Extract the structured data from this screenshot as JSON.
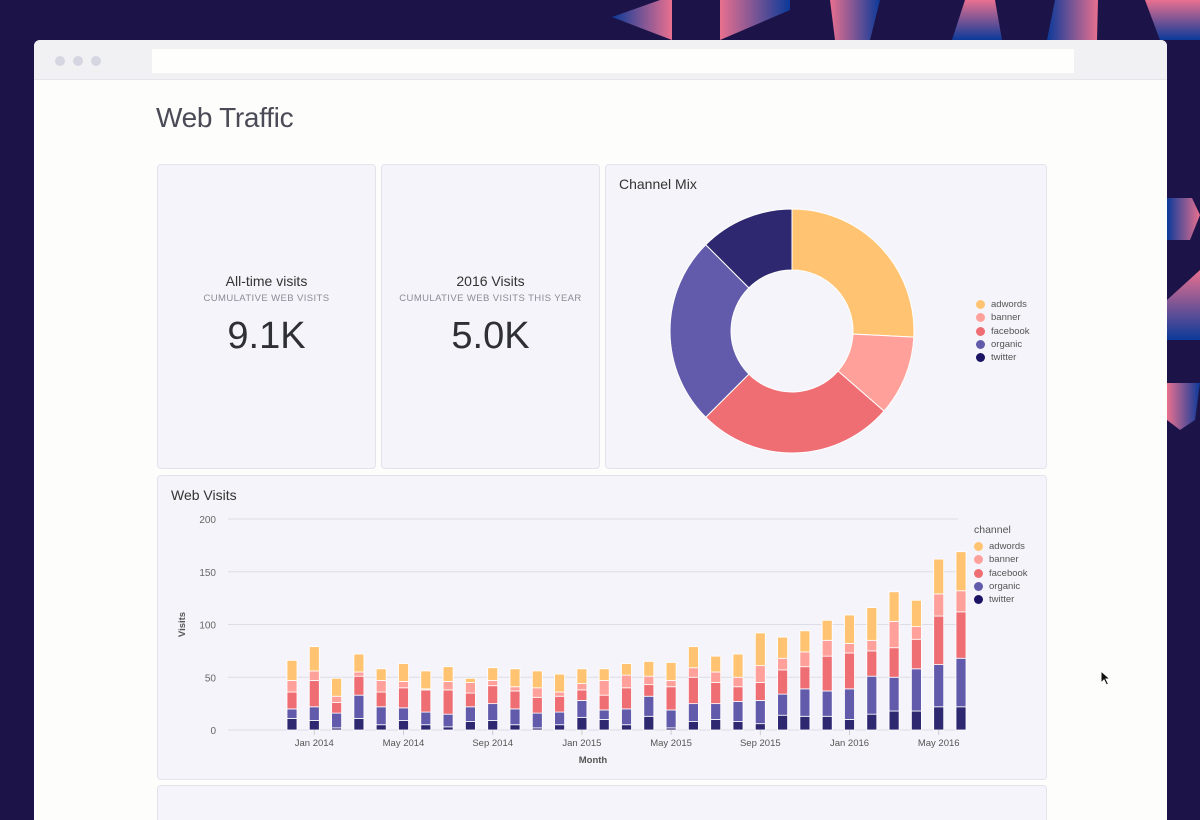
{
  "window": {
    "url": ""
  },
  "page": {
    "title": "Web Traffic"
  },
  "kpis": [
    {
      "title": "All-time visits",
      "subtitle": "CUMULATIVE WEB VISITS",
      "value": "9.1K"
    },
    {
      "title": "2016 Visits",
      "subtitle": "CUMULATIVE WEB VISITS THIS YEAR",
      "value": "5.0K"
    }
  ],
  "colors": {
    "adwords": "#FFC372",
    "banner": "#FFA19A",
    "facebook": "#EF6E74",
    "organic": "#625BAC",
    "twitter": "#2D2870"
  },
  "channel_mix": {
    "title": "Channel Mix",
    "legend": [
      "adwords",
      "banner",
      "facebook",
      "organic",
      "twitter"
    ]
  },
  "web_visits": {
    "title": "Web Visits",
    "legend_title": "channel",
    "legend": [
      "adwords",
      "banner",
      "facebook",
      "organic",
      "twitter"
    ]
  },
  "chart_data": [
    {
      "type": "pie",
      "title": "Channel Mix",
      "donut": true,
      "categories": [
        "adwords",
        "banner",
        "facebook",
        "organic",
        "twitter"
      ],
      "values": [
        25.8,
        10.6,
        26.1,
        25.0,
        12.5
      ],
      "unit": "percent (estimated)",
      "legend_position": "right"
    },
    {
      "type": "bar",
      "stacked": true,
      "title": "Web Visits",
      "xlabel": "Month",
      "ylabel": "Visits",
      "ylim": [
        0,
        200
      ],
      "yticks": [
        0,
        50,
        100,
        150,
        200
      ],
      "xtick_labels": [
        "Jan 2014",
        "May 2014",
        "Sep 2014",
        "Jan 2015",
        "May 2015",
        "Sep 2015",
        "Jan 2016",
        "May 2016"
      ],
      "grid": true,
      "legend_title": "channel",
      "legend_position": "right",
      "categories": [
        "Dec 2013",
        "Jan 2014",
        "Feb 2014",
        "Mar 2014",
        "Apr 2014",
        "May 2014",
        "Jun 2014",
        "Jul 2014",
        "Aug 2014",
        "Sep 2014",
        "Oct 2014",
        "Nov 2014",
        "Dec 2014",
        "Jan 2015",
        "Feb 2015",
        "Mar 2015",
        "Apr 2015",
        "May 2015",
        "Jun 2015",
        "Jul 2015",
        "Aug 2015",
        "Sep 2015",
        "Oct 2015",
        "Nov 2015",
        "Dec 2015",
        "Jan 2016",
        "Feb 2016",
        "Mar 2016",
        "Apr 2016",
        "May 2016",
        "Jun 2016"
      ],
      "series": [
        {
          "name": "twitter",
          "values": [
            11,
            9,
            2,
            11,
            5,
            9,
            5,
            3,
            8,
            9,
            5,
            2,
            5,
            12,
            10,
            5,
            13,
            2,
            8,
            10,
            8,
            6,
            14,
            13,
            13,
            10,
            15,
            18,
            18,
            22,
            22
          ]
        },
        {
          "name": "organic",
          "values": [
            9,
            13,
            14,
            22,
            17,
            12,
            12,
            12,
            14,
            16,
            15,
            14,
            12,
            16,
            9,
            15,
            19,
            17,
            17,
            15,
            19,
            22,
            20,
            26,
            24,
            29,
            36,
            32,
            40,
            40,
            46
          ]
        },
        {
          "name": "facebook",
          "values": [
            16,
            25,
            10,
            18,
            14,
            19,
            21,
            23,
            13,
            17,
            17,
            15,
            15,
            10,
            14,
            20,
            11,
            22,
            25,
            20,
            14,
            17,
            23,
            21,
            33,
            34,
            24,
            28,
            28,
            46,
            44
          ]
        },
        {
          "name": "banner",
          "values": [
            11,
            9,
            6,
            4,
            11,
            6,
            1,
            8,
            10,
            5,
            4,
            9,
            4,
            6,
            14,
            12,
            8,
            6,
            9,
            10,
            9,
            16,
            11,
            14,
            15,
            9,
            10,
            25,
            12,
            21,
            20
          ]
        },
        {
          "name": "adwords",
          "values": [
            19,
            23,
            17,
            17,
            11,
            17,
            17,
            14,
            4,
            12,
            17,
            16,
            17,
            14,
            11,
            11,
            14,
            17,
            20,
            15,
            22,
            31,
            20,
            20,
            19,
            27,
            31,
            28,
            25,
            33,
            37
          ]
        }
      ]
    }
  ]
}
